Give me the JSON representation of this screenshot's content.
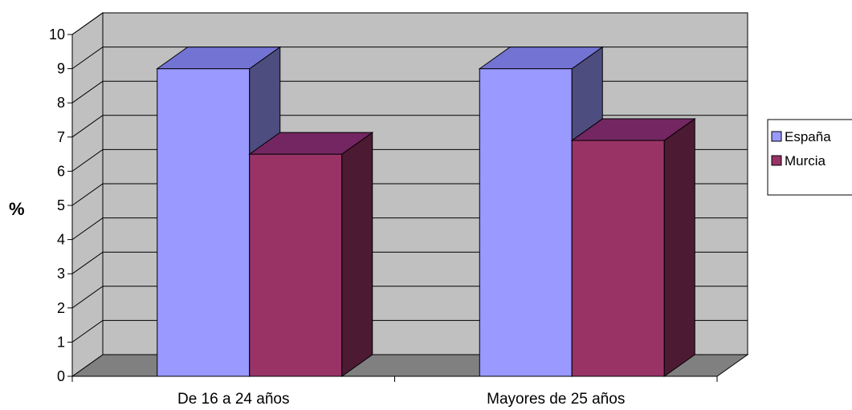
{
  "chart_data": {
    "type": "bar",
    "style": "3d-clustered-column",
    "categories": [
      "De 16 a 24 años",
      "Mayores de 25 años"
    ],
    "series": [
      {
        "name": "España",
        "values": [
          9.0,
          9.0
        ],
        "color": "#9999FF"
      },
      {
        "name": "Murcia",
        "values": [
          6.5,
          6.9
        ],
        "color": "#993366"
      }
    ],
    "title": "",
    "xlabel": "",
    "ylabel": "%",
    "ylim": [
      0,
      10
    ],
    "yticks": [
      "0",
      "1",
      "2",
      "3",
      "4",
      "5",
      "6",
      "7",
      "8",
      "9",
      "10"
    ],
    "grid": true,
    "legend_position": "right",
    "wall_color": "#C0C0C0",
    "floor_color": "#808080"
  }
}
